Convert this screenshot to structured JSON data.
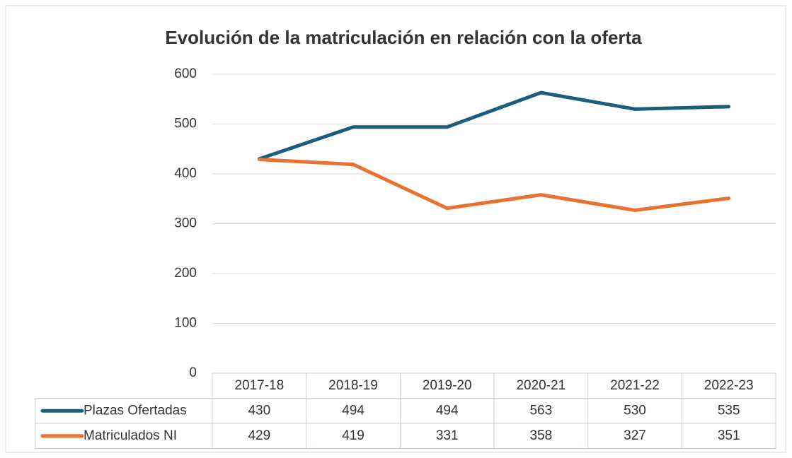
{
  "chart_data": {
    "type": "line",
    "title": "Evolución de la matriculación en relación con la oferta",
    "categories": [
      "2017-18",
      "2018-19",
      "2019-20",
      "2020-21",
      "2021-22",
      "2022-23"
    ],
    "series": [
      {
        "name": "Plazas Ofertadas",
        "color": "#1c5d7c",
        "values": [
          430,
          494,
          494,
          563,
          530,
          535
        ]
      },
      {
        "name": "Matriculados NI",
        "color": "#e8722f",
        "values": [
          429,
          419,
          331,
          358,
          327,
          351
        ]
      }
    ],
    "ylim": [
      0,
      600
    ],
    "yticks": [
      0,
      100,
      200,
      300,
      400,
      500,
      600
    ],
    "grid": true
  }
}
